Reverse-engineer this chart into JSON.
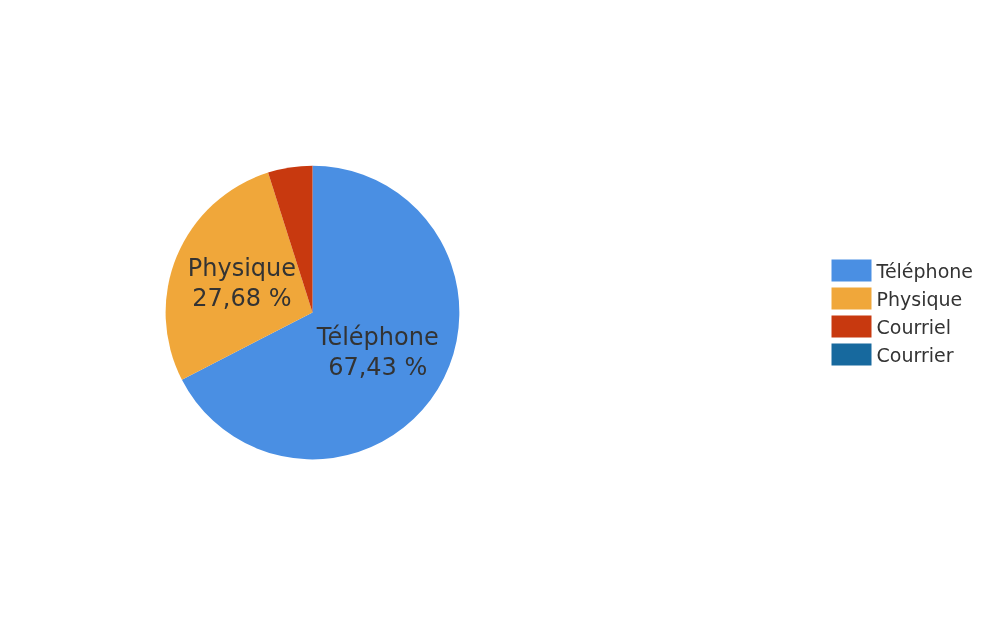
{
  "chart_data": {
    "type": "pie",
    "categories": [
      "Téléphone",
      "Physique",
      "Courriel",
      "Courrier"
    ],
    "values": [
      67.43,
      27.68,
      4.89,
      0
    ],
    "value_labels": [
      "67,43 %",
      "27,68 %",
      null,
      null
    ],
    "colors": [
      "#4a8fe3",
      "#f0a73a",
      "#c8390f",
      "#17699e"
    ],
    "legend": "right"
  }
}
